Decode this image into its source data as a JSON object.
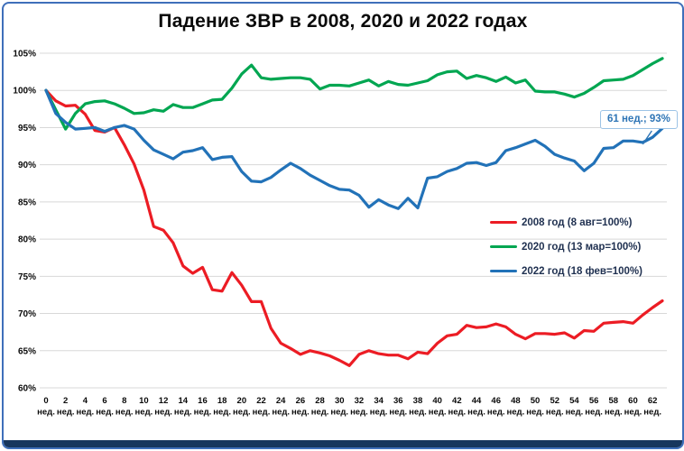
{
  "title": "Падение ЗВР в 2008, 2020 и 2022 годах",
  "annotation": {
    "text": "61 нед.; 93%",
    "week": 61,
    "value": 93,
    "border_color": "#9dc3e6",
    "text_color": "#2e75b6"
  },
  "frame": {
    "border_color": "#3f6fba",
    "footer_bar_color": "#17365d"
  },
  "chart_data": {
    "type": "line",
    "title": "Падение ЗВР в 2008, 2020 и 2022 годах",
    "xlabel": "",
    "ylabel": "",
    "x_unit_label": "нед.",
    "x_tick_step": 2,
    "ylim": [
      60,
      105
    ],
    "y_tick_step": 5,
    "y_tick_suffix": "%",
    "grid": "horizontal",
    "grid_color": "#d8d8d8",
    "legend_position": "inside-right",
    "x": [
      0,
      1,
      2,
      3,
      4,
      5,
      6,
      7,
      8,
      9,
      10,
      11,
      12,
      13,
      14,
      15,
      16,
      17,
      18,
      19,
      20,
      21,
      22,
      23,
      24,
      25,
      26,
      27,
      28,
      29,
      30,
      31,
      32,
      33,
      34,
      35,
      36,
      37,
      38,
      39,
      40,
      41,
      42,
      43,
      44,
      45,
      46,
      47,
      48,
      49,
      50,
      51,
      52,
      53,
      54,
      55,
      56,
      57,
      58,
      59,
      60,
      61,
      62,
      63
    ],
    "series": [
      {
        "name": "2008 год (8 авг=100%)",
        "color": "#ec1c24",
        "values": [
          100,
          98.6,
          97.9,
          98.0,
          96.8,
          94.6,
          94.4,
          95.0,
          92.7,
          90.1,
          86.6,
          81.7,
          81.2,
          79.5,
          76.4,
          75.4,
          76.2,
          73.2,
          73.0,
          75.5,
          73.8,
          71.6,
          71.6,
          68.0,
          66.0,
          65.3,
          64.5,
          65.0,
          64.7,
          64.3,
          63.7,
          63.0,
          64.5,
          65.0,
          64.6,
          64.4,
          64.4,
          63.9,
          64.8,
          64.6,
          66.0,
          67.0,
          67.2,
          68.4,
          68.1,
          68.2,
          68.6,
          68.2,
          67.2,
          66.6,
          67.3,
          67.3,
          67.2,
          67.4,
          66.7,
          67.7,
          67.6,
          68.7,
          68.8,
          68.9,
          68.7,
          69.8,
          70.8,
          71.7
        ]
      },
      {
        "name": "2020 год (13 мар=100%)",
        "color": "#00a651",
        "values": [
          100,
          97.4,
          94.8,
          96.9,
          98.2,
          98.5,
          98.6,
          98.2,
          97.6,
          96.9,
          97.0,
          97.4,
          97.2,
          98.1,
          97.7,
          97.7,
          98.2,
          98.7,
          98.8,
          100.3,
          102.2,
          103.4,
          101.7,
          101.5,
          101.6,
          101.7,
          101.7,
          101.5,
          100.2,
          100.7,
          100.7,
          100.6,
          101.0,
          101.4,
          100.6,
          101.2,
          100.8,
          100.7,
          101.0,
          101.3,
          102.1,
          102.5,
          102.6,
          101.6,
          102.0,
          101.7,
          101.2,
          101.8,
          101.0,
          101.4,
          99.9,
          99.8,
          99.8,
          99.5,
          99.1,
          99.6,
          100.4,
          101.3,
          101.4,
          101.5,
          102.0,
          102.8,
          103.6,
          104.3
        ]
      },
      {
        "name": "2022 год (18 фев=100%)",
        "color": "#2272b8",
        "values": [
          100,
          96.9,
          95.7,
          94.8,
          94.9,
          95.0,
          94.5,
          95.0,
          95.3,
          94.8,
          93.3,
          92.0,
          91.4,
          90.8,
          91.7,
          91.9,
          92.3,
          90.7,
          91.0,
          91.1,
          89.1,
          87.8,
          87.7,
          88.3,
          89.3,
          90.2,
          89.5,
          88.6,
          87.9,
          87.2,
          86.7,
          86.6,
          85.9,
          84.3,
          85.3,
          84.6,
          84.1,
          85.5,
          84.2,
          88.2,
          88.4,
          89.1,
          89.5,
          90.2,
          90.3,
          89.9,
          90.3,
          91.9,
          92.3,
          92.8,
          93.3,
          92.5,
          91.4,
          90.9,
          90.5,
          89.2,
          90.2,
          92.2,
          92.3,
          93.2,
          93.2,
          93.0,
          93.7,
          94.9
        ]
      }
    ]
  }
}
